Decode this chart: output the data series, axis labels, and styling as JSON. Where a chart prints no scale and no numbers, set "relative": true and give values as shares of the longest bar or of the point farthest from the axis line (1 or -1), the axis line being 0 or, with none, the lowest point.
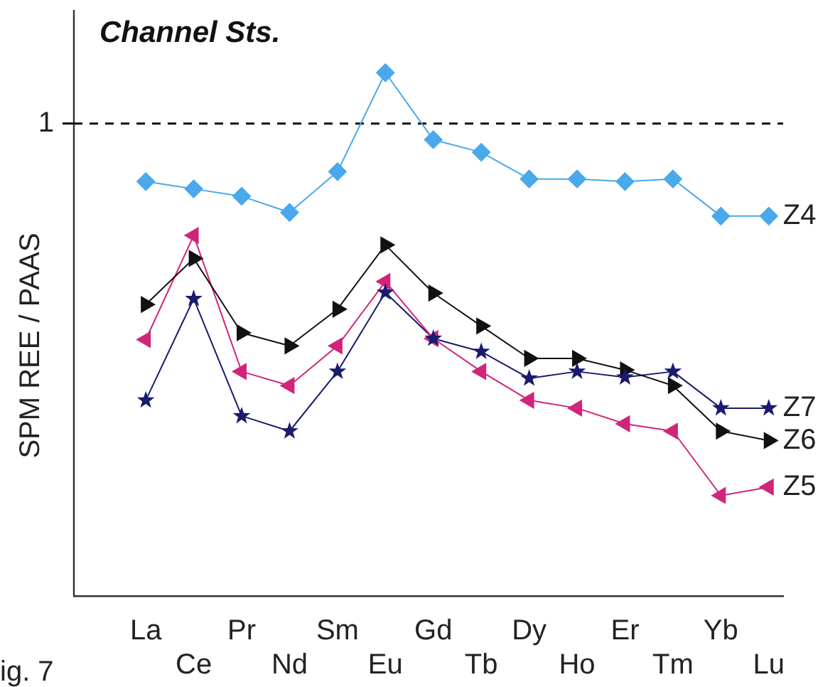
{
  "chart_data": {
    "type": "line",
    "title": "Channel Sts.",
    "ylabel": "SPM REE / PAAS",
    "relative": true,
    "legend": false,
    "grid": false,
    "categories": [
      "La",
      "Ce",
      "Pr",
      "Nd",
      "Sm",
      "Eu",
      "Gd",
      "Tb",
      "Dy",
      "Ho",
      "Er",
      "Tm",
      "Yb",
      "Lu"
    ],
    "series": [
      {
        "name": "Z4",
        "color": "#4aa8ec",
        "marker": "diamond",
        "values": [
          0.792,
          0.778,
          0.764,
          0.733,
          0.811,
          1.0,
          0.872,
          0.848,
          0.797,
          0.797,
          0.792,
          0.797,
          0.726,
          0.726
        ]
      },
      {
        "name": "Z6",
        "color": "#111111",
        "marker": "triangle",
        "values": [
          0.557,
          0.645,
          0.503,
          0.478,
          0.548,
          0.671,
          0.579,
          0.516,
          0.454,
          0.454,
          0.432,
          0.402,
          0.315,
          0.297
        ]
      },
      {
        "name": "Z5",
        "color": "#d0257a",
        "marker": "triangle",
        "values": [
          0.49,
          0.689,
          0.429,
          0.402,
          0.478,
          0.601,
          0.492,
          0.429,
          0.374,
          0.359,
          0.329,
          0.315,
          0.192,
          0.208
        ]
      },
      {
        "name": "Z7",
        "color": "#1a1a6e",
        "marker": "star",
        "values": [
          0.374,
          0.568,
          0.344,
          0.315,
          0.429,
          0.58,
          0.492,
          0.467,
          0.416,
          0.429,
          0.418,
          0.429,
          0.359,
          0.359
        ]
      }
    ],
    "ref_lines": [
      {
        "axis": "y",
        "value": 0.903,
        "label": "1",
        "line_style": "dashed",
        "color": "#111111"
      }
    ],
    "annotations": [
      "ig. 7"
    ]
  }
}
